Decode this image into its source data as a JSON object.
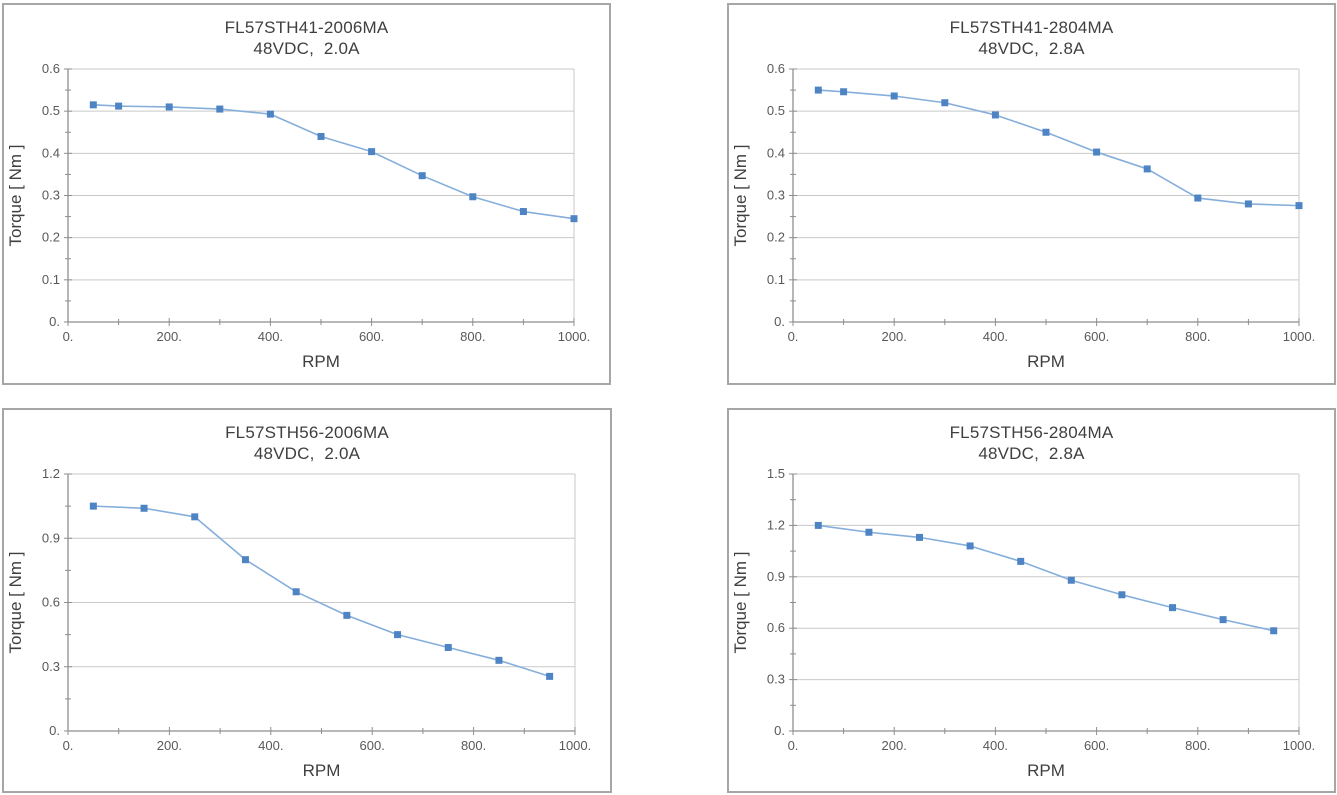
{
  "style": {
    "panel_border": "#a6a6a6",
    "grid_color": "#c9c9c9",
    "axis_color": "#8e8e8e",
    "line_color": "#85aedb",
    "marker_color": "#4e84c4",
    "title_text_color": "#3f3f3f",
    "tick_text_color": "#595959"
  },
  "chart_data": [
    {
      "type": "line",
      "title": "FL57STH41-2006MA",
      "subtitle": "48VDC,  2.0A",
      "xlabel": "RPM",
      "ylabel": "Torque [ Nm ]",
      "xlim": [
        0,
        1000
      ],
      "ylim": [
        0,
        0.6
      ],
      "x_ticks": [
        {
          "v": 0,
          "label": "0."
        },
        {
          "v": 200,
          "label": "200."
        },
        {
          "v": 400,
          "label": "400."
        },
        {
          "v": 600,
          "label": "600."
        },
        {
          "v": 800,
          "label": "800."
        },
        {
          "v": 1000,
          "label": "1000."
        }
      ],
      "x_minor_step": 100,
      "y_ticks": [
        {
          "v": 0,
          "label": "0."
        },
        {
          "v": 0.1,
          "label": "0.1"
        },
        {
          "v": 0.2,
          "label": "0.2"
        },
        {
          "v": 0.3,
          "label": "0.3"
        },
        {
          "v": 0.4,
          "label": "0.4"
        },
        {
          "v": 0.5,
          "label": "0.5"
        },
        {
          "v": 0.6,
          "label": "0.6"
        }
      ],
      "y_minor_step": 0.05,
      "grid": "horizontal-major",
      "legend": "none",
      "x": [
        50,
        100,
        200,
        300,
        400,
        500,
        600,
        700,
        800,
        900,
        1000
      ],
      "y": [
        0.515,
        0.512,
        0.51,
        0.505,
        0.493,
        0.44,
        0.404,
        0.347,
        0.297,
        0.262,
        0.245
      ]
    },
    {
      "type": "line",
      "title": "FL57STH41-2804MA",
      "subtitle": "48VDC,  2.8A",
      "xlabel": "RPM",
      "ylabel": "Torque [ Nm ]",
      "xlim": [
        0,
        1000
      ],
      "ylim": [
        0,
        0.6
      ],
      "x_ticks": [
        {
          "v": 0,
          "label": "0."
        },
        {
          "v": 200,
          "label": "200."
        },
        {
          "v": 400,
          "label": "400."
        },
        {
          "v": 600,
          "label": "600."
        },
        {
          "v": 800,
          "label": "800."
        },
        {
          "v": 1000,
          "label": "1000."
        }
      ],
      "x_minor_step": 100,
      "y_ticks": [
        {
          "v": 0,
          "label": "0."
        },
        {
          "v": 0.1,
          "label": "0.1"
        },
        {
          "v": 0.2,
          "label": "0.2"
        },
        {
          "v": 0.3,
          "label": "0.3"
        },
        {
          "v": 0.4,
          "label": "0.4"
        },
        {
          "v": 0.5,
          "label": "0.5"
        },
        {
          "v": 0.6,
          "label": "0.6"
        }
      ],
      "y_minor_step": 0.05,
      "grid": "horizontal-major",
      "legend": "none",
      "x": [
        50,
        100,
        200,
        300,
        400,
        500,
        600,
        700,
        800,
        900,
        1000
      ],
      "y": [
        0.55,
        0.546,
        0.536,
        0.52,
        0.491,
        0.45,
        0.403,
        0.363,
        0.294,
        0.28,
        0.276
      ]
    },
    {
      "type": "line",
      "title": "FL57STH56-2006MA",
      "subtitle": "48VDC,  2.0A",
      "xlabel": "RPM",
      "ylabel": "Torque [ Nm ]",
      "xlim": [
        0,
        1000
      ],
      "ylim": [
        0,
        1.2
      ],
      "x_ticks": [
        {
          "v": 0,
          "label": "0."
        },
        {
          "v": 200,
          "label": "200."
        },
        {
          "v": 400,
          "label": "400."
        },
        {
          "v": 600,
          "label": "600."
        },
        {
          "v": 800,
          "label": "800."
        },
        {
          "v": 1000,
          "label": "1000."
        }
      ],
      "x_minor_step": 100,
      "y_ticks": [
        {
          "v": 0,
          "label": "0."
        },
        {
          "v": 0.3,
          "label": "0.3"
        },
        {
          "v": 0.6,
          "label": "0.6"
        },
        {
          "v": 0.9,
          "label": "0.9"
        },
        {
          "v": 1.2,
          "label": "1.2"
        }
      ],
      "y_minor_step": 0.15,
      "grid": "horizontal-major",
      "legend": "none",
      "x": [
        50,
        150,
        250,
        350,
        450,
        550,
        650,
        750,
        850,
        950
      ],
      "y": [
        1.05,
        1.04,
        1.0,
        0.8,
        0.65,
        0.54,
        0.45,
        0.39,
        0.33,
        0.255
      ]
    },
    {
      "type": "line",
      "title": "FL57STH56-2804MA",
      "subtitle": "48VDC,  2.8A",
      "xlabel": "RPM",
      "ylabel": "Torque [ Nm ]",
      "xlim": [
        0,
        1000
      ],
      "ylim": [
        0,
        1.5
      ],
      "x_ticks": [
        {
          "v": 0,
          "label": "0."
        },
        {
          "v": 200,
          "label": "200."
        },
        {
          "v": 400,
          "label": "400."
        },
        {
          "v": 600,
          "label": "600."
        },
        {
          "v": 800,
          "label": "800."
        },
        {
          "v": 1000,
          "label": "1000."
        }
      ],
      "x_minor_step": 100,
      "y_ticks": [
        {
          "v": 0,
          "label": "0."
        },
        {
          "v": 0.3,
          "label": "0.3"
        },
        {
          "v": 0.6,
          "label": "0.6"
        },
        {
          "v": 0.9,
          "label": "0.9"
        },
        {
          "v": 1.2,
          "label": "1.2"
        },
        {
          "v": 1.5,
          "label": "1.5"
        }
      ],
      "y_minor_step": 0.15,
      "grid": "horizontal-major",
      "legend": "none",
      "x": [
        50,
        150,
        250,
        350,
        450,
        550,
        650,
        750,
        850,
        950
      ],
      "y": [
        1.2,
        1.16,
        1.13,
        1.08,
        0.99,
        0.88,
        0.795,
        0.72,
        0.65,
        0.585
      ]
    }
  ]
}
